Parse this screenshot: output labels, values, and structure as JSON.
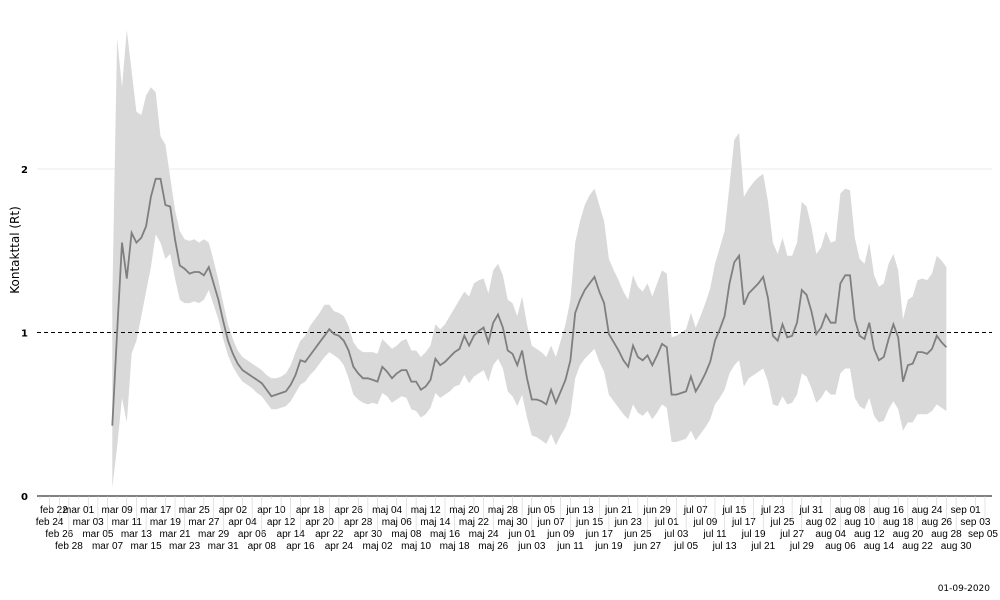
{
  "chart_data": {
    "type": "line",
    "title": "",
    "xlabel": "",
    "ylabel": "Kontakttal (Rt)",
    "caption": "01-09-2020",
    "ylim": [
      0,
      2.9
    ],
    "yticks": [
      0,
      1,
      2
    ],
    "ytick_labels": [
      "0",
      "1",
      "2"
    ],
    "reference_line": 1,
    "grid": "horizontal at 2 only",
    "legend": "none",
    "colors": {
      "line": "#7f7f7f",
      "band": "#d9d9d9",
      "grid": "#ebebeb",
      "reference": "#000000",
      "axis": "#000000"
    },
    "xlim": [
      "2020-02-22",
      "2020-09-05"
    ],
    "xtick_labels": [
      "feb 22",
      "feb 24",
      "feb 26",
      "feb 28",
      "mar 01",
      "mar 03",
      "mar 05",
      "mar 07",
      "mar 09",
      "mar 11",
      "mar 13",
      "mar 15",
      "mar 17",
      "mar 19",
      "mar 21",
      "mar 23",
      "mar 25",
      "mar 27",
      "mar 29",
      "mar 31",
      "apr 02",
      "apr 04",
      "apr 06",
      "apr 08",
      "apr 10",
      "apr 12",
      "apr 14",
      "apr 16",
      "apr 18",
      "apr 20",
      "apr 22",
      "apr 24",
      "apr 26",
      "apr 28",
      "apr 30",
      "maj 02",
      "maj 04",
      "maj 06",
      "maj 08",
      "maj 10",
      "maj 12",
      "maj 14",
      "maj 16",
      "maj 18",
      "maj 20",
      "maj 22",
      "maj 24",
      "maj 26",
      "maj 28",
      "maj 30",
      "jun 01",
      "jun 03",
      "jun 05",
      "jun 07",
      "jun 09",
      "jun 11",
      "jun 13",
      "jun 15",
      "jun 17",
      "jun 19",
      "jun 21",
      "jun 23",
      "jun 25",
      "jun 27",
      "jun 29",
      "jul 01",
      "jul 03",
      "jul 05",
      "jul 07",
      "jul 09",
      "jul 11",
      "jul 13",
      "jul 15",
      "jul 17",
      "jul 19",
      "jul 21",
      "jul 23",
      "jul 25",
      "jul 27",
      "jul 29",
      "jul 31",
      "aug 02",
      "aug 04",
      "aug 06",
      "aug 08",
      "aug 10",
      "aug 12",
      "aug 14",
      "aug 16",
      "aug 18",
      "aug 20",
      "aug 22",
      "aug 24",
      "aug 26",
      "aug 28",
      "aug 30",
      "sep 01",
      "sep 03",
      "sep 05"
    ],
    "series": [
      {
        "dates": [
          "2020-03-08",
          "2020-03-09",
          "2020-03-10",
          "2020-03-11",
          "2020-03-12",
          "2020-03-13",
          "2020-03-14",
          "2020-03-15",
          "2020-03-16",
          "2020-03-17",
          "2020-03-18",
          "2020-03-19",
          "2020-03-20",
          "2020-03-21",
          "2020-03-22",
          "2020-03-23",
          "2020-03-24",
          "2020-03-25",
          "2020-03-26",
          "2020-03-27",
          "2020-03-28",
          "2020-03-29",
          "2020-03-30",
          "2020-03-31",
          "2020-04-01",
          "2020-04-02",
          "2020-04-03",
          "2020-04-04",
          "2020-04-05",
          "2020-04-06",
          "2020-04-07",
          "2020-04-08",
          "2020-04-09",
          "2020-04-10",
          "2020-04-11",
          "2020-04-12",
          "2020-04-13",
          "2020-04-14",
          "2020-04-15",
          "2020-04-16",
          "2020-04-17",
          "2020-04-18",
          "2020-04-19",
          "2020-04-20",
          "2020-04-21",
          "2020-04-22",
          "2020-04-23",
          "2020-04-24",
          "2020-04-25",
          "2020-04-26",
          "2020-04-27",
          "2020-04-28",
          "2020-04-29",
          "2020-04-30",
          "2020-05-01",
          "2020-05-02",
          "2020-05-03",
          "2020-05-04",
          "2020-05-05",
          "2020-05-06",
          "2020-05-07",
          "2020-05-08",
          "2020-05-09",
          "2020-05-10",
          "2020-05-11",
          "2020-05-12",
          "2020-05-13",
          "2020-05-14",
          "2020-05-15",
          "2020-05-16",
          "2020-05-17",
          "2020-05-18",
          "2020-05-19",
          "2020-05-20",
          "2020-05-21",
          "2020-05-22",
          "2020-05-23",
          "2020-05-24",
          "2020-05-25",
          "2020-05-26",
          "2020-05-27",
          "2020-05-28",
          "2020-05-29",
          "2020-05-30",
          "2020-05-31",
          "2020-06-01",
          "2020-06-02",
          "2020-06-03",
          "2020-06-04",
          "2020-06-05",
          "2020-06-06",
          "2020-06-07",
          "2020-06-08",
          "2020-06-09",
          "2020-06-10",
          "2020-06-11",
          "2020-06-12",
          "2020-06-13",
          "2020-06-14",
          "2020-06-15",
          "2020-06-16",
          "2020-06-17",
          "2020-06-18",
          "2020-06-19",
          "2020-06-20",
          "2020-06-21",
          "2020-06-22",
          "2020-06-23",
          "2020-06-24",
          "2020-06-25",
          "2020-06-26",
          "2020-06-27",
          "2020-06-28",
          "2020-06-29",
          "2020-06-30",
          "2020-07-01",
          "2020-07-02",
          "2020-07-03",
          "2020-07-04",
          "2020-07-05",
          "2020-07-06",
          "2020-07-07",
          "2020-07-08",
          "2020-07-09",
          "2020-07-10",
          "2020-07-11",
          "2020-07-12",
          "2020-07-13",
          "2020-07-14",
          "2020-07-15",
          "2020-07-16",
          "2020-07-17",
          "2020-07-18",
          "2020-07-19",
          "2020-07-20",
          "2020-07-21",
          "2020-07-22",
          "2020-07-23",
          "2020-07-24",
          "2020-07-25",
          "2020-07-26",
          "2020-07-27",
          "2020-07-28",
          "2020-07-29",
          "2020-07-30",
          "2020-07-31",
          "2020-08-01",
          "2020-08-02",
          "2020-08-03",
          "2020-08-04",
          "2020-08-05",
          "2020-08-06",
          "2020-08-07",
          "2020-08-08",
          "2020-08-09",
          "2020-08-10",
          "2020-08-11",
          "2020-08-12",
          "2020-08-13",
          "2020-08-14",
          "2020-08-15",
          "2020-08-16",
          "2020-08-17",
          "2020-08-18",
          "2020-08-19",
          "2020-08-20",
          "2020-08-21",
          "2020-08-22",
          "2020-08-23",
          "2020-08-24",
          "2020-08-25",
          "2020-08-26",
          "2020-08-27",
          "2020-08-28"
        ],
        "rt": [
          0.43,
          1.0,
          1.55,
          1.33,
          1.61,
          1.55,
          1.58,
          1.65,
          1.83,
          1.94,
          1.94,
          1.78,
          1.77,
          1.57,
          1.41,
          1.39,
          1.36,
          1.37,
          1.37,
          1.35,
          1.4,
          1.3,
          1.2,
          1.07,
          0.95,
          0.87,
          0.81,
          0.77,
          0.75,
          0.73,
          0.71,
          0.69,
          0.65,
          0.61,
          0.62,
          0.63,
          0.64,
          0.68,
          0.74,
          0.83,
          0.82,
          0.86,
          0.9,
          0.94,
          0.98,
          1.02,
          0.99,
          0.98,
          0.95,
          0.89,
          0.79,
          0.75,
          0.72,
          0.72,
          0.71,
          0.7,
          0.79,
          0.76,
          0.72,
          0.75,
          0.77,
          0.77,
          0.7,
          0.7,
          0.65,
          0.67,
          0.71,
          0.84,
          0.8,
          0.82,
          0.85,
          0.88,
          0.9,
          0.98,
          0.92,
          0.98,
          1.01,
          1.03,
          0.94,
          1.06,
          1.11,
          1.03,
          0.89,
          0.87,
          0.8,
          0.89,
          0.72,
          0.59,
          0.59,
          0.58,
          0.56,
          0.65,
          0.57,
          0.64,
          0.71,
          0.83,
          1.12,
          1.2,
          1.26,
          1.3,
          1.34,
          1.25,
          1.18,
          0.99,
          0.94,
          0.89,
          0.83,
          0.79,
          0.92,
          0.85,
          0.83,
          0.86,
          0.8,
          0.86,
          0.93,
          0.91,
          0.62,
          0.62,
          0.63,
          0.64,
          0.73,
          0.64,
          0.69,
          0.75,
          0.82,
          0.95,
          1.02,
          1.1,
          1.3,
          1.43,
          1.47,
          1.17,
          1.24,
          1.27,
          1.3,
          1.34,
          1.21,
          0.98,
          0.95,
          1.05,
          0.97,
          0.98,
          1.06,
          1.26,
          1.23,
          1.13,
          0.99,
          1.03,
          1.11,
          1.06,
          1.06,
          1.3,
          1.35,
          1.35,
          1.08,
          0.98,
          0.96,
          1.06,
          0.9,
          0.83,
          0.85,
          0.96,
          1.05,
          0.97,
          0.7,
          0.8,
          0.81,
          0.88,
          0.88,
          0.87,
          0.9,
          0.98,
          0.94,
          0.91
        ],
        "lower": [
          0.05,
          0.3,
          0.6,
          0.45,
          0.87,
          0.95,
          1.1,
          1.25,
          1.4,
          1.6,
          1.55,
          1.45,
          1.48,
          1.33,
          1.2,
          1.18,
          1.18,
          1.19,
          1.18,
          1.2,
          1.26,
          1.17,
          1.08,
          0.96,
          0.86,
          0.79,
          0.74,
          0.7,
          0.68,
          0.66,
          0.63,
          0.61,
          0.57,
          0.53,
          0.53,
          0.54,
          0.55,
          0.58,
          0.63,
          0.68,
          0.7,
          0.74,
          0.77,
          0.81,
          0.85,
          0.88,
          0.86,
          0.84,
          0.8,
          0.72,
          0.62,
          0.59,
          0.57,
          0.56,
          0.57,
          0.56,
          0.63,
          0.61,
          0.57,
          0.59,
          0.61,
          0.6,
          0.53,
          0.52,
          0.48,
          0.5,
          0.54,
          0.63,
          0.6,
          0.62,
          0.64,
          0.67,
          0.68,
          0.74,
          0.69,
          0.73,
          0.75,
          0.77,
          0.7,
          0.8,
          0.84,
          0.78,
          0.64,
          0.61,
          0.55,
          0.62,
          0.48,
          0.37,
          0.36,
          0.34,
          0.32,
          0.38,
          0.31,
          0.37,
          0.42,
          0.5,
          0.72,
          0.8,
          0.84,
          0.87,
          0.9,
          0.82,
          0.76,
          0.62,
          0.58,
          0.54,
          0.5,
          0.47,
          0.56,
          0.51,
          0.49,
          0.52,
          0.47,
          0.51,
          0.56,
          0.54,
          0.33,
          0.33,
          0.34,
          0.35,
          0.4,
          0.34,
          0.38,
          0.42,
          0.47,
          0.56,
          0.6,
          0.65,
          0.75,
          0.8,
          0.83,
          0.67,
          0.72,
          0.74,
          0.76,
          0.78,
          0.7,
          0.56,
          0.55,
          0.61,
          0.56,
          0.57,
          0.62,
          0.75,
          0.73,
          0.66,
          0.57,
          0.6,
          0.65,
          0.62,
          0.62,
          0.75,
          0.78,
          0.78,
          0.6,
          0.55,
          0.53,
          0.6,
          0.49,
          0.45,
          0.46,
          0.53,
          0.58,
          0.53,
          0.4,
          0.45,
          0.45,
          0.5,
          0.5,
          0.5,
          0.52,
          0.56,
          0.54,
          0.52
        ],
        "upper": [
          1.2,
          2.8,
          2.5,
          2.85,
          2.6,
          2.35,
          2.33,
          2.45,
          2.5,
          2.47,
          2.2,
          2.15,
          1.95,
          1.75,
          1.62,
          1.57,
          1.56,
          1.57,
          1.55,
          1.57,
          1.55,
          1.44,
          1.32,
          1.18,
          1.05,
          0.96,
          0.89,
          0.85,
          0.83,
          0.81,
          0.79,
          0.77,
          0.74,
          0.72,
          0.72,
          0.73,
          0.75,
          0.8,
          0.88,
          0.95,
          0.98,
          1.04,
          1.08,
          1.12,
          1.17,
          1.17,
          1.13,
          1.12,
          1.1,
          1.04,
          0.94,
          0.9,
          0.88,
          0.88,
          0.88,
          0.87,
          0.96,
          0.93,
          0.9,
          0.92,
          0.95,
          0.96,
          0.89,
          0.89,
          0.85,
          0.88,
          0.92,
          1.05,
          1.02,
          1.05,
          1.1,
          1.15,
          1.2,
          1.25,
          1.22,
          1.3,
          1.32,
          1.33,
          1.24,
          1.38,
          1.42,
          1.35,
          1.2,
          1.18,
          1.1,
          1.22,
          1.05,
          0.92,
          0.9,
          0.88,
          0.85,
          0.92,
          0.85,
          0.95,
          1.05,
          1.2,
          1.55,
          1.68,
          1.78,
          1.84,
          1.88,
          1.78,
          1.68,
          1.45,
          1.38,
          1.32,
          1.25,
          1.2,
          1.35,
          1.28,
          1.25,
          1.3,
          1.22,
          1.3,
          1.38,
          1.36,
          0.97,
          0.98,
          1.0,
          1.02,
          1.12,
          1.03,
          1.1,
          1.18,
          1.27,
          1.42,
          1.52,
          1.62,
          1.9,
          2.18,
          2.22,
          1.83,
          1.88,
          1.92,
          1.95,
          1.97,
          1.8,
          1.55,
          1.48,
          1.58,
          1.47,
          1.47,
          1.55,
          1.8,
          1.77,
          1.65,
          1.48,
          1.52,
          1.62,
          1.55,
          1.56,
          1.85,
          1.88,
          1.87,
          1.58,
          1.45,
          1.42,
          1.55,
          1.35,
          1.28,
          1.3,
          1.42,
          1.48,
          1.38,
          1.08,
          1.2,
          1.22,
          1.32,
          1.33,
          1.32,
          1.36,
          1.47,
          1.44,
          1.4
        ]
      }
    ]
  }
}
